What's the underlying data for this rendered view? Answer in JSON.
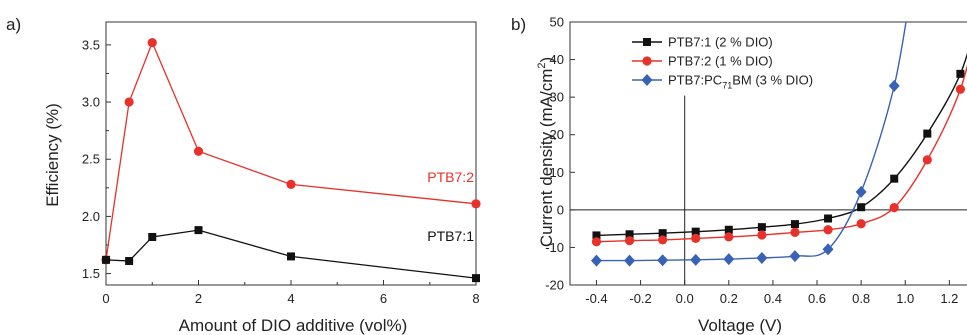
{
  "chart_data": [
    {
      "panel_label": "a)",
      "type": "line",
      "xlabel": "Amount of DIO additive (vol%)",
      "ylabel": "Efficiency (%)",
      "xlim": [
        0,
        8
      ],
      "ylim": [
        1.4,
        3.7
      ],
      "xticks": [
        "0",
        "2",
        "4",
        "6",
        "8"
      ],
      "yticks": [
        "1.5",
        "2.0",
        "2.5",
        "3.0",
        "3.5"
      ],
      "grid": false,
      "series": [
        {
          "name": "PTB7:2",
          "color": "#e8312a",
          "marker": "circle",
          "x": [
            0,
            0.5,
            1,
            2,
            4,
            8
          ],
          "y": [
            1.62,
            3.0,
            3.52,
            2.57,
            2.28,
            2.11
          ]
        },
        {
          "name": "PTB7:1",
          "color": "#111111",
          "marker": "square",
          "x": [
            0,
            0.5,
            1,
            2,
            4,
            8
          ],
          "y": [
            1.62,
            1.61,
            1.82,
            1.88,
            1.65,
            1.46
          ]
        }
      ]
    },
    {
      "panel_label": "b)",
      "type": "line",
      "xlabel": "Voltage (V)",
      "ylabel": "Current density (mA/cm²)",
      "ylabel_parts": [
        "Current density (mA/cm",
        "2",
        ")"
      ],
      "xlim": [
        -0.52,
        1.28
      ],
      "ylim": [
        -20,
        50
      ],
      "xticks": [
        "-0.4",
        "-0.2",
        "0.0",
        "0.2",
        "0.4",
        "0.6",
        "0.8",
        "1.0",
        "1.2"
      ],
      "yticks": [
        "-20",
        "-10",
        "0",
        "10",
        "20",
        "30",
        "40",
        "50"
      ],
      "grid": false,
      "legend_position": "top-left",
      "series": [
        {
          "name": "PTB7:1 (2 % DIO)",
          "color": "#111111",
          "marker": "square",
          "x": [
            -0.4,
            -0.25,
            -0.1,
            0.05,
            0.2,
            0.35,
            0.5,
            0.65,
            0.8,
            0.95,
            1.1,
            1.25
          ],
          "y": [
            -6.8,
            -6.5,
            -6.2,
            -5.8,
            -5.3,
            -4.6,
            -3.8,
            -2.3,
            0.7,
            8.3,
            20.3,
            36.2
          ]
        },
        {
          "name": "PTB7:2 (1 % DIO)",
          "color": "#e8312a",
          "marker": "circle",
          "x": [
            -0.4,
            -0.25,
            -0.1,
            0.05,
            0.2,
            0.35,
            0.5,
            0.65,
            0.8,
            0.95,
            1.1,
            1.25
          ],
          "y": [
            -8.5,
            -8.2,
            -8.0,
            -7.6,
            -7.2,
            -6.7,
            -6.0,
            -5.3,
            -3.7,
            0.6,
            13.3,
            32.1
          ]
        },
        {
          "name_parts": [
            "PTB7:PC",
            "71",
            "BM (3 % DIO)"
          ],
          "name": "PTB7:PC71BM (3 % DIO)",
          "color": "#3a62b4",
          "marker": "diamond",
          "x": [
            -0.4,
            -0.25,
            -0.1,
            0.05,
            0.2,
            0.35,
            0.5,
            0.65,
            0.8,
            0.95
          ],
          "y": [
            -13.5,
            -13.5,
            -13.4,
            -13.3,
            -13.1,
            -12.8,
            -12.3,
            -10.5,
            4.8,
            33.0
          ]
        }
      ]
    }
  ],
  "annotations": {
    "panel_a_label_ptb7_2": "PTB7:2",
    "panel_a_label_ptb7_1": "PTB7:1"
  }
}
